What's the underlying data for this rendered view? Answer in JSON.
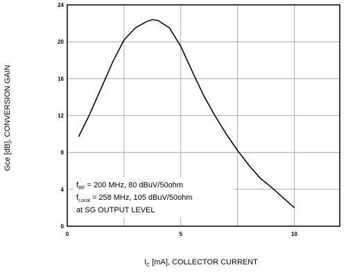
{
  "chart_data": {
    "type": "line",
    "x": [
      0.5,
      1,
      1.5,
      2,
      2.5,
      3,
      3.5,
      3.75,
      4,
      4.5,
      5,
      5.5,
      6,
      6.5,
      7,
      7.5,
      8,
      8.5,
      9,
      9.5,
      10
    ],
    "series": [
      {
        "color": "#000000",
        "values": [
          9.7,
          12.2,
          15,
          17.8,
          20.2,
          21.5,
          22.2,
          22.4,
          22.3,
          21.5,
          19.5,
          16.8,
          14.2,
          12,
          10,
          8.2,
          6.6,
          5.2,
          4.2,
          3.1,
          2
        ]
      }
    ],
    "xlim": [
      0,
      12
    ],
    "xticks": [
      0,
      5,
      10
    ],
    "xminor": [
      2.5,
      7.5
    ],
    "ylim": [
      0,
      24
    ],
    "yticks": [
      0,
      4,
      8,
      12,
      16,
      20,
      24
    ],
    "grid": true,
    "ylabel": "Gce [dB], CONVERSION GAIN",
    "xlabel": {
      "main": "I",
      "sub": "C",
      "rest": " [mA], COLLECTOR CURRENT"
    },
    "annotations": [
      {
        "main": "f",
        "sub": "RF",
        "rest": " = 200 MHz, 80 dBuV/50ohm"
      },
      {
        "main": "f",
        "sub": "Local",
        "rest": " = 258 MHz, 105 dBuV/50ohm"
      },
      {
        "main": "at SG OUTPUT LEVEL"
      }
    ]
  }
}
